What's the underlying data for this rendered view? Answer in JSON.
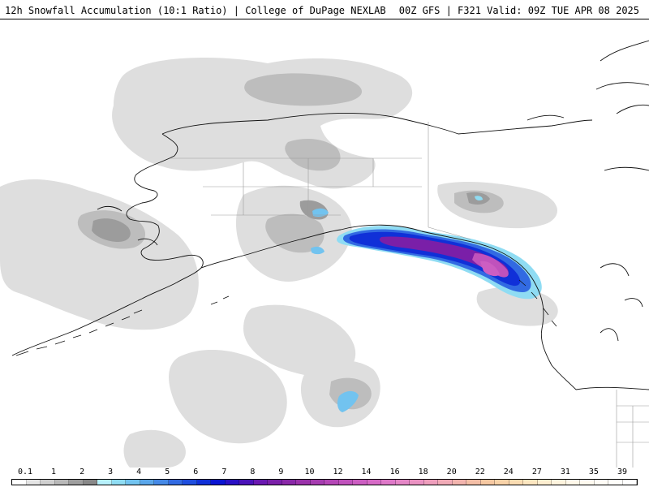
{
  "header": {
    "left_title": "12h Snowfall Accumulation (10:1 Ratio) | College of DuPage NEXLAB",
    "right_title": "00Z GFS | F321 Valid: 09Z TUE APR 08 2025"
  },
  "legend": {
    "labels": [
      "0.1",
      "1",
      "2",
      "3",
      "4",
      "5",
      "6",
      "7",
      "8",
      "9",
      "10",
      "12",
      "14",
      "16",
      "18",
      "20",
      "22",
      "24",
      "27",
      "31",
      "35",
      "39"
    ],
    "colors": [
      "#ffffff",
      "#e4e4e4",
      "#cfcfcf",
      "#b8b8b8",
      "#9e9e9e",
      "#888888",
      "#b6f0fb",
      "#8fdcf3",
      "#72c3ef",
      "#5aa6ea",
      "#4589e6",
      "#326ae2",
      "#1f4ede",
      "#1030d8",
      "#0a14d2",
      "#2a10c4",
      "#4a12b8",
      "#6a18b0",
      "#7a1fa8",
      "#8a28a8",
      "#9a32aa",
      "#a63cb0",
      "#b446b6",
      "#c052bc",
      "#cc5ec2",
      "#d66ac6",
      "#de78c8",
      "#e486c6",
      "#ea92c2",
      "#ee9ebc",
      "#f0aab6",
      "#f2b4ae",
      "#f4bea6",
      "#f6c8a2",
      "#f8d2a8",
      "#fadcb2",
      "#fce6c0",
      "#fdeed0",
      "#fef4de",
      "#fff8ea",
      "#fffaf0",
      "#fffcf6",
      "#fffefa",
      "#ffffff"
    ]
  }
}
